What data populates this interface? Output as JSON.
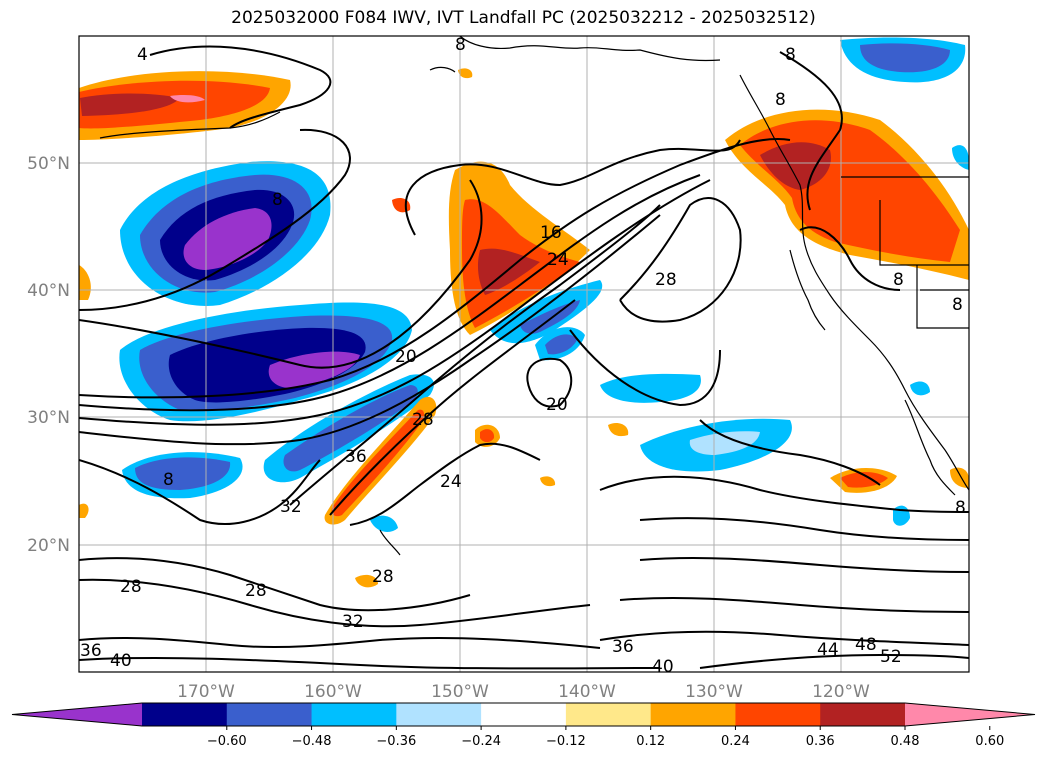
{
  "title": "2025032000 F084 IWV, IVT Landfall PC (2025032212 - 2025032512)",
  "lat_labels": [
    "50°N",
    "40°N",
    "30°N",
    "20°N"
  ],
  "lon_labels": [
    "170°W",
    "160°W",
    "150°W",
    "140°W",
    "130°W",
    "120°W"
  ],
  "colorbar": {
    "tick_labels": [
      "−0.60",
      "−0.48",
      "−0.36",
      "−0.24",
      "−0.12",
      "0.12",
      "0.24",
      "0.36",
      "0.48",
      "0.60"
    ],
    "colors": [
      "#9933cc",
      "#00008b",
      "#3a5fcd",
      "#00bfff",
      "#b0e2ff",
      "#ffffff",
      "#ffe88a",
      "#ffa500",
      "#ff4500",
      "#b22222",
      "#ff88aa"
    ]
  },
  "contour_labels": [
    "4",
    "8",
    "8",
    "8",
    "8",
    "8",
    "16",
    "24",
    "28",
    "20",
    "20",
    "28",
    "36",
    "32",
    "24",
    "28",
    "28",
    "28",
    "32",
    "36",
    "40",
    "36",
    "40",
    "44",
    "48",
    "52",
    "8",
    "8",
    "8"
  ]
}
